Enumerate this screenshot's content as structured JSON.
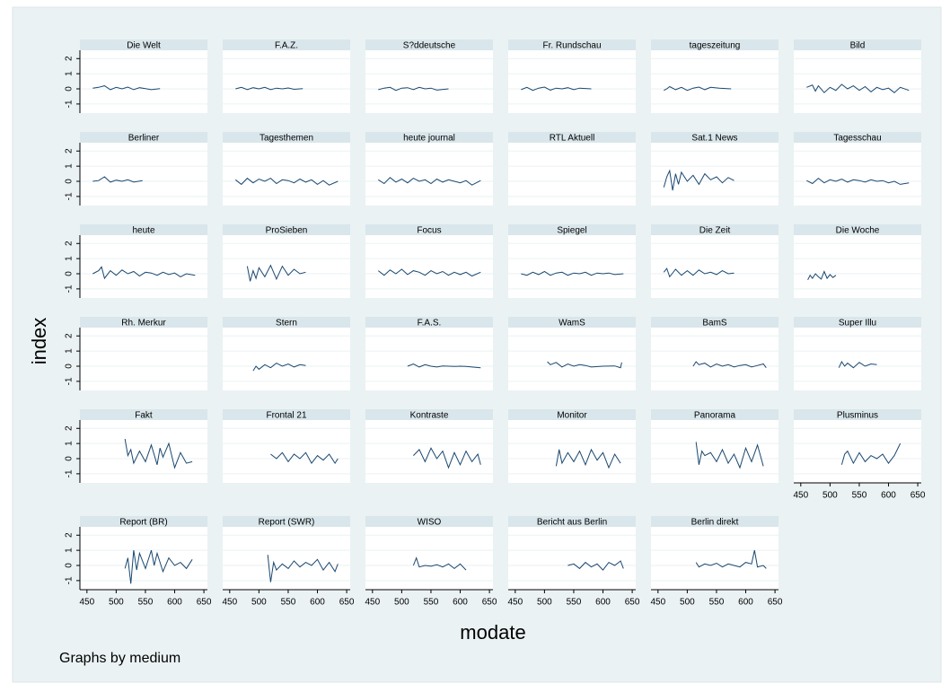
{
  "chart_data": {
    "type": "line",
    "y_label": "index",
    "x_label": "modate",
    "note": "Graphs by medium",
    "color": "#1a476f",
    "grid": true,
    "xlim": [
      438,
      656
    ],
    "ylim": [
      -1.6,
      2.55
    ],
    "xticks": [
      450,
      500,
      550,
      600,
      650
    ],
    "yticks": [
      -1,
      0,
      1,
      2
    ],
    "panels": [
      {
        "title": "Die Welt",
        "x": [
          460,
          470,
          480,
          490,
          500,
          510,
          520,
          530,
          540,
          550,
          560,
          575
        ],
        "values": [
          0.05,
          0.1,
          0.2,
          -0.05,
          0.1,
          0.0,
          0.12,
          -0.05,
          0.08,
          0.02,
          -0.05,
          0.02
        ]
      },
      {
        "title": "F.A.Z.",
        "x": [
          460,
          470,
          480,
          490,
          500,
          510,
          520,
          530,
          540,
          550,
          560,
          575
        ],
        "values": [
          0.0,
          0.1,
          -0.05,
          0.08,
          0.0,
          0.1,
          -0.05,
          0.05,
          0.0,
          0.06,
          -0.03,
          0.02
        ]
      },
      {
        "title": "S?ddeutsche",
        "x": [
          460,
          470,
          480,
          490,
          500,
          510,
          520,
          530,
          540,
          550,
          560,
          580
        ],
        "values": [
          -0.05,
          0.05,
          0.1,
          -0.1,
          0.05,
          0.08,
          -0.05,
          0.1,
          0.0,
          0.05,
          -0.08,
          0.0
        ]
      },
      {
        "title": "Fr. Rundschau",
        "x": [
          460,
          470,
          480,
          490,
          500,
          510,
          520,
          530,
          540,
          550,
          560,
          580
        ],
        "values": [
          -0.05,
          0.1,
          -0.1,
          0.05,
          0.12,
          -0.08,
          0.05,
          0.0,
          0.08,
          -0.05,
          0.05,
          0.0
        ]
      },
      {
        "title": "tageszeitung",
        "x": [
          460,
          465,
          470,
          480,
          490,
          500,
          510,
          520,
          530,
          540,
          555,
          575
        ],
        "values": [
          -0.1,
          0.0,
          0.15,
          -0.05,
          0.1,
          -0.1,
          0.05,
          0.12,
          -0.05,
          0.1,
          0.05,
          0.0
        ]
      },
      {
        "title": "Bild",
        "x": [
          460,
          470,
          475,
          480,
          490,
          500,
          510,
          520,
          530,
          540,
          550,
          560,
          570,
          580,
          590,
          600,
          610,
          620,
          635
        ],
        "values": [
          0.1,
          0.25,
          -0.15,
          0.2,
          -0.25,
          0.1,
          -0.1,
          0.3,
          0.0,
          0.2,
          -0.1,
          0.15,
          -0.2,
          0.1,
          -0.05,
          0.05,
          -0.25,
          0.1,
          -0.1
        ]
      },
      {
        "title": "Berliner",
        "x": [
          460,
          470,
          480,
          490,
          500,
          510,
          520,
          530,
          545
        ],
        "values": [
          0.0,
          0.05,
          0.3,
          -0.05,
          0.08,
          0.0,
          0.1,
          -0.05,
          0.05
        ]
      },
      {
        "title": "Tagesthemen",
        "x": [
          460,
          470,
          480,
          490,
          500,
          510,
          520,
          530,
          540,
          550,
          560,
          570,
          580,
          590,
          600,
          610,
          620,
          635
        ],
        "values": [
          0.1,
          -0.2,
          0.2,
          -0.1,
          0.15,
          0.0,
          0.2,
          -0.15,
          0.1,
          0.05,
          -0.1,
          0.15,
          -0.05,
          0.1,
          -0.2,
          0.05,
          -0.25,
          0.0
        ]
      },
      {
        "title": "heute journal",
        "x": [
          460,
          470,
          480,
          490,
          500,
          510,
          520,
          530,
          540,
          550,
          560,
          570,
          580,
          590,
          600,
          610,
          620,
          635
        ],
        "values": [
          0.1,
          -0.15,
          0.25,
          -0.05,
          0.15,
          -0.1,
          0.2,
          0.0,
          0.1,
          -0.15,
          0.15,
          -0.05,
          0.1,
          0.0,
          -0.1,
          0.05,
          -0.25,
          0.05
        ]
      },
      {
        "title": "RTL Aktuell",
        "x": [],
        "values": []
      },
      {
        "title": "Sat.1 News",
        "x": [
          460,
          465,
          470,
          475,
          480,
          485,
          490,
          500,
          510,
          520,
          530,
          540,
          550,
          560,
          570,
          580
        ],
        "values": [
          -0.4,
          0.3,
          0.7,
          -0.6,
          0.5,
          -0.2,
          0.6,
          0.0,
          0.4,
          -0.2,
          0.5,
          0.1,
          0.3,
          -0.1,
          0.25,
          0.05
        ]
      },
      {
        "title": "Tagesschau",
        "x": [
          460,
          470,
          480,
          490,
          500,
          510,
          520,
          530,
          540,
          550,
          560,
          570,
          580,
          590,
          600,
          610,
          620,
          635
        ],
        "values": [
          0.05,
          -0.15,
          0.2,
          -0.1,
          0.1,
          0.0,
          0.15,
          -0.05,
          0.1,
          0.05,
          -0.05,
          0.1,
          0.0,
          0.05,
          -0.1,
          0.0,
          -0.2,
          -0.1
        ]
      },
      {
        "title": "heute",
        "x": [
          460,
          470,
          475,
          480,
          490,
          500,
          510,
          520,
          530,
          540,
          550,
          560,
          570,
          580,
          590,
          600,
          610,
          620,
          635
        ],
        "values": [
          0.0,
          0.2,
          0.45,
          -0.3,
          0.2,
          -0.1,
          0.25,
          0.0,
          0.15,
          -0.15,
          0.1,
          0.05,
          -0.1,
          0.1,
          -0.05,
          0.05,
          -0.2,
          0.0,
          -0.1
        ]
      },
      {
        "title": "ProSieben",
        "x": [
          480,
          485,
          490,
          495,
          500,
          510,
          520,
          530,
          540,
          550,
          560,
          570,
          580
        ],
        "values": [
          0.5,
          -0.5,
          0.2,
          -0.3,
          0.4,
          -0.2,
          0.55,
          -0.35,
          0.5,
          -0.1,
          0.3,
          0.0,
          0.1
        ]
      },
      {
        "title": "Focus",
        "x": [
          460,
          470,
          480,
          490,
          500,
          510,
          520,
          530,
          540,
          550,
          560,
          570,
          580,
          590,
          600,
          610,
          620,
          635
        ],
        "values": [
          0.2,
          -0.1,
          0.25,
          0.0,
          0.3,
          -0.05,
          0.2,
          0.1,
          -0.1,
          0.2,
          0.0,
          0.15,
          -0.1,
          0.1,
          -0.05,
          0.1,
          -0.15,
          0.1
        ]
      },
      {
        "title": "Spiegel",
        "x": [
          460,
          470,
          480,
          490,
          500,
          510,
          520,
          530,
          540,
          550,
          560,
          570,
          580,
          590,
          600,
          610,
          620,
          635
        ],
        "values": [
          0.0,
          -0.1,
          0.1,
          -0.05,
          0.15,
          -0.1,
          0.05,
          0.1,
          -0.1,
          0.05,
          0.0,
          0.1,
          -0.1,
          0.05,
          0.0,
          0.05,
          -0.05,
          0.0
        ]
      },
      {
        "title": "Die Zeit",
        "x": [
          460,
          465,
          470,
          480,
          490,
          500,
          510,
          520,
          530,
          540,
          550,
          560,
          570,
          580
        ],
        "values": [
          0.1,
          0.35,
          -0.2,
          0.3,
          -0.1,
          0.2,
          -0.1,
          0.25,
          0.0,
          0.1,
          -0.05,
          0.2,
          0.0,
          0.05
        ]
      },
      {
        "title": "Die Woche",
        "x": [
          462,
          466,
          470,
          475,
          480,
          485,
          490,
          495,
          500,
          505,
          510
        ],
        "values": [
          -0.4,
          -0.1,
          -0.3,
          0.0,
          -0.2,
          -0.35,
          0.15,
          -0.3,
          -0.05,
          -0.25,
          -0.1
        ]
      },
      {
        "title": "Rh. Merkur",
        "x": [],
        "values": []
      },
      {
        "title": "Stern",
        "x": [
          490,
          495,
          500,
          510,
          520,
          530,
          540,
          550,
          560,
          570,
          580
        ],
        "values": [
          -0.3,
          0.0,
          -0.2,
          0.1,
          -0.1,
          0.2,
          0.0,
          0.15,
          -0.05,
          0.1,
          0.05
        ]
      },
      {
        "title": "F.A.S.",
        "x": [
          510,
          520,
          530,
          540,
          550,
          560,
          570,
          580,
          590,
          600,
          610,
          620,
          635
        ],
        "values": [
          0.0,
          0.15,
          -0.05,
          0.1,
          0.0,
          -0.05,
          0.02,
          0.0,
          -0.02,
          0.0,
          -0.02,
          -0.05,
          -0.1
        ]
      },
      {
        "title": "WamS",
        "x": [
          505,
          510,
          520,
          530,
          540,
          550,
          560,
          570,
          580,
          600,
          620,
          630,
          632
        ],
        "values": [
          0.3,
          0.1,
          0.25,
          -0.05,
          0.15,
          0.0,
          0.1,
          0.05,
          -0.05,
          0.0,
          0.02,
          -0.1,
          0.25
        ]
      },
      {
        "title": "BamS",
        "x": [
          510,
          515,
          520,
          530,
          540,
          550,
          560,
          570,
          580,
          590,
          600,
          610,
          620,
          630,
          635
        ],
        "values": [
          0.0,
          0.3,
          0.1,
          0.2,
          -0.05,
          0.15,
          0.0,
          0.1,
          -0.05,
          0.05,
          0.1,
          -0.05,
          0.05,
          0.15,
          -0.1
        ]
      },
      {
        "title": "Super Illu",
        "x": [
          515,
          520,
          525,
          530,
          540,
          550,
          560,
          570,
          580
        ],
        "values": [
          -0.1,
          0.3,
          0.0,
          0.2,
          -0.1,
          0.25,
          0.0,
          0.15,
          0.1
        ]
      },
      {
        "title": "Fakt",
        "x": [
          515,
          520,
          525,
          530,
          540,
          550,
          560,
          570,
          575,
          580,
          590,
          600,
          610,
          620,
          630
        ],
        "values": [
          1.3,
          0.2,
          0.6,
          -0.3,
          0.5,
          -0.2,
          0.9,
          -0.4,
          0.7,
          0.1,
          1.0,
          -0.6,
          0.4,
          -0.3,
          -0.2
        ]
      },
      {
        "title": "Frontal 21",
        "x": [
          520,
          530,
          540,
          550,
          560,
          570,
          580,
          590,
          600,
          610,
          620,
          630,
          635
        ],
        "values": [
          0.3,
          0.0,
          0.4,
          -0.2,
          0.3,
          0.0,
          0.4,
          -0.3,
          0.2,
          -0.1,
          0.3,
          -0.3,
          0.0
        ]
      },
      {
        "title": "Kontraste",
        "x": [
          520,
          530,
          540,
          550,
          560,
          570,
          580,
          590,
          600,
          610,
          620,
          630,
          635
        ],
        "values": [
          0.2,
          0.6,
          -0.2,
          0.7,
          0.0,
          0.5,
          -0.6,
          0.4,
          -0.4,
          0.5,
          -0.2,
          0.3,
          -0.4
        ]
      },
      {
        "title": "Monitor",
        "x": [
          520,
          525,
          530,
          540,
          550,
          560,
          570,
          580,
          590,
          600,
          610,
          620,
          630
        ],
        "values": [
          -0.5,
          0.6,
          -0.3,
          0.4,
          -0.2,
          0.5,
          -0.4,
          0.6,
          -0.1,
          0.4,
          -0.6,
          0.3,
          -0.3
        ]
      },
      {
        "title": "Panorama",
        "x": [
          515,
          520,
          525,
          530,
          540,
          550,
          560,
          570,
          580,
          590,
          600,
          610,
          620,
          630
        ],
        "values": [
          1.1,
          -0.4,
          0.5,
          0.2,
          0.4,
          -0.2,
          0.6,
          -0.3,
          0.3,
          -0.6,
          0.7,
          -0.2,
          0.9,
          -0.5
        ]
      },
      {
        "title": "Plusminus",
        "x": [
          520,
          525,
          530,
          540,
          550,
          560,
          570,
          580,
          590,
          600,
          610,
          620
        ],
        "values": [
          -0.4,
          0.3,
          0.5,
          -0.3,
          0.4,
          -0.2,
          0.2,
          0.0,
          0.3,
          -0.3,
          0.2,
          1.0
        ]
      },
      {
        "title": "Report (BR)",
        "x": [
          515,
          520,
          525,
          530,
          535,
          540,
          550,
          560,
          565,
          570,
          580,
          590,
          600,
          610,
          620,
          630
        ],
        "values": [
          -0.2,
          0.5,
          -1.2,
          1.0,
          -0.3,
          0.8,
          -0.2,
          1.0,
          0.0,
          0.8,
          -0.4,
          0.5,
          0.0,
          0.2,
          -0.2,
          0.4
        ]
      },
      {
        "title": "Report (SWR)",
        "x": [
          515,
          520,
          525,
          530,
          540,
          550,
          560,
          570,
          580,
          590,
          600,
          610,
          620,
          630,
          635
        ],
        "values": [
          0.7,
          -1.1,
          0.2,
          -0.3,
          0.1,
          -0.2,
          0.3,
          -0.1,
          0.2,
          0.0,
          0.4,
          -0.3,
          0.2,
          -0.4,
          0.1
        ]
      },
      {
        "title": "WISO",
        "x": [
          520,
          525,
          530,
          540,
          550,
          560,
          570,
          580,
          590,
          600,
          610
        ],
        "values": [
          0.0,
          0.5,
          -0.1,
          0.0,
          -0.05,
          0.05,
          -0.1,
          0.1,
          -0.2,
          0.1,
          -0.3
        ]
      },
      {
        "title": "Bericht aus Berlin",
        "x": [
          540,
          550,
          560,
          570,
          580,
          590,
          600,
          610,
          620,
          630,
          635
        ],
        "values": [
          0.0,
          0.1,
          -0.2,
          0.2,
          -0.1,
          0.1,
          -0.3,
          0.2,
          0.0,
          0.3,
          -0.2
        ]
      },
      {
        "title": "Berlin direkt",
        "x": [
          515,
          520,
          530,
          540,
          550,
          560,
          570,
          580,
          590,
          600,
          610,
          615,
          620,
          630,
          635
        ],
        "values": [
          0.2,
          -0.1,
          0.1,
          0.0,
          0.15,
          -0.1,
          0.1,
          0.0,
          -0.1,
          0.2,
          0.1,
          1.0,
          -0.1,
          0.0,
          -0.2
        ]
      }
    ]
  }
}
